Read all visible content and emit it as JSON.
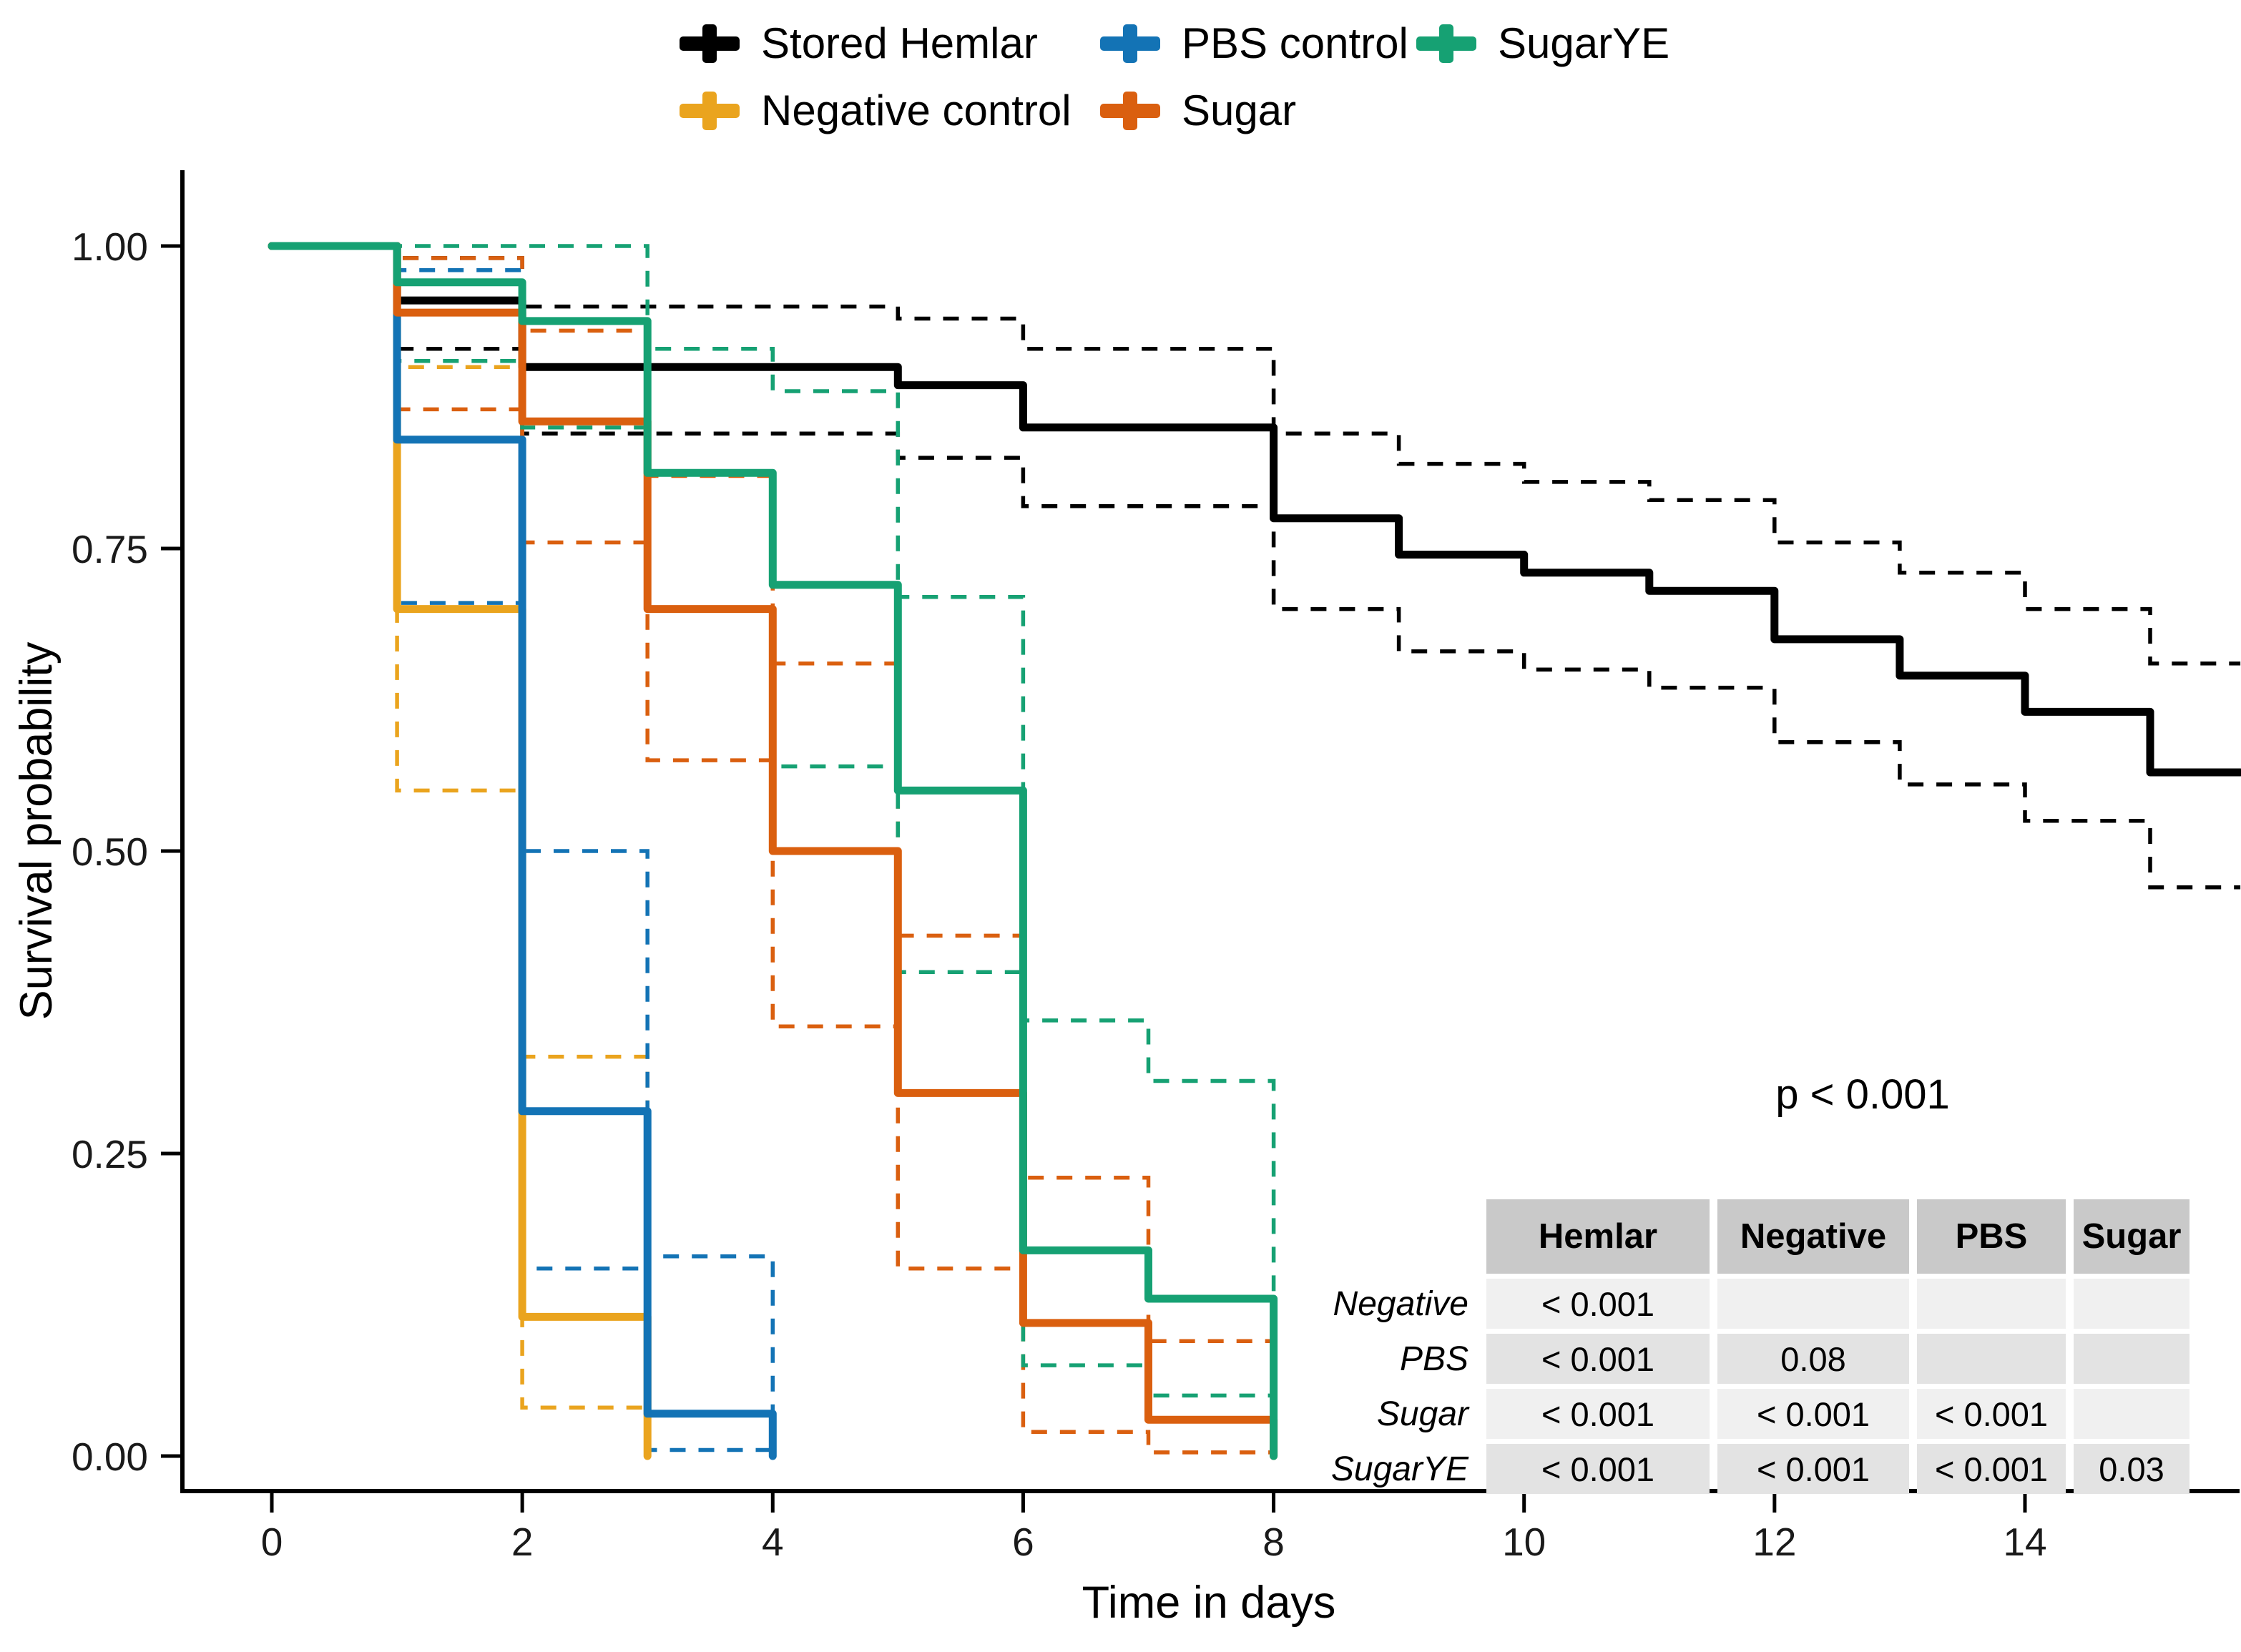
{
  "chart_data": {
    "type": "line",
    "subtype": "kaplan-meier-step",
    "title": "",
    "xlabel": "Time in days",
    "ylabel": "Survival probability",
    "xlim": [
      -0.72,
      15.72
    ],
    "ylim": [
      0,
      1
    ],
    "grid": false,
    "legend_position": "top",
    "xticks": [
      {
        "v": 0,
        "label": "0"
      },
      {
        "v": 2,
        "label": "2"
      },
      {
        "v": 4,
        "label": "4"
      },
      {
        "v": 6,
        "label": "6"
      },
      {
        "v": 8,
        "label": "8"
      },
      {
        "v": 10,
        "label": "10"
      },
      {
        "v": 12,
        "label": "12"
      },
      {
        "v": 14,
        "label": "14"
      }
    ],
    "yticks": [
      {
        "v": 1.0,
        "label": "1.00"
      },
      {
        "v": 0.75,
        "label": "0.75"
      },
      {
        "v": 0.5,
        "label": "0.50"
      },
      {
        "v": 0.25,
        "label": "0.25"
      },
      {
        "v": 0.0,
        "label": "0.00"
      }
    ],
    "series": [
      {
        "name": "Stored Hemlar",
        "color": "#000000",
        "end": 15.72,
        "steps": [
          [
            0,
            1
          ],
          [
            1,
            0.955
          ],
          [
            2,
            0.9
          ],
          [
            5,
            0.885
          ],
          [
            6,
            0.85
          ],
          [
            8,
            0.775
          ],
          [
            9,
            0.745
          ],
          [
            10,
            0.73
          ],
          [
            11,
            0.715
          ],
          [
            12,
            0.675
          ],
          [
            13,
            0.645
          ],
          [
            14,
            0.615
          ],
          [
            15,
            0.565
          ]
        ],
        "upper": [
          [
            0,
            1
          ],
          [
            1,
            0.99
          ],
          [
            2,
            0.95
          ],
          [
            5,
            0.94
          ],
          [
            6,
            0.915
          ],
          [
            8,
            0.845
          ],
          [
            9,
            0.82
          ],
          [
            10,
            0.805
          ],
          [
            11,
            0.79
          ],
          [
            12,
            0.755
          ],
          [
            13,
            0.73
          ],
          [
            14,
            0.7
          ],
          [
            15,
            0.655
          ]
        ],
        "lower": [
          [
            0,
            1
          ],
          [
            1,
            0.915
          ],
          [
            2,
            0.845
          ],
          [
            5,
            0.825
          ],
          [
            6,
            0.785
          ],
          [
            8,
            0.7
          ],
          [
            9,
            0.665
          ],
          [
            10,
            0.65
          ],
          [
            11,
            0.635
          ],
          [
            12,
            0.59
          ],
          [
            13,
            0.555
          ],
          [
            14,
            0.525
          ],
          [
            15,
            0.47
          ]
        ]
      },
      {
        "name": "Negative control",
        "color": "#EAA41E",
        "end": 3,
        "steps": [
          [
            0,
            1
          ],
          [
            1,
            0.7
          ],
          [
            2,
            0.115
          ],
          [
            3,
            0
          ]
        ],
        "upper": [
          [
            0,
            1
          ],
          [
            1,
            0.9
          ],
          [
            2,
            0.33
          ],
          [
            3,
            0
          ]
        ],
        "lower": [
          [
            0,
            1
          ],
          [
            1,
            0.55
          ],
          [
            2,
            0.04
          ],
          [
            3,
            0
          ]
        ]
      },
      {
        "name": "PBS control",
        "color": "#1373B5",
        "end": 4,
        "steps": [
          [
            0,
            1
          ],
          [
            1,
            0.84
          ],
          [
            2,
            0.285
          ],
          [
            3,
            0.035
          ],
          [
            4,
            0
          ]
        ],
        "upper": [
          [
            0,
            1
          ],
          [
            1,
            0.98
          ],
          [
            2,
            0.5
          ],
          [
            3,
            0.165
          ],
          [
            4,
            0
          ]
        ],
        "lower": [
          [
            0,
            1
          ],
          [
            1,
            0.705
          ],
          [
            2,
            0.155
          ],
          [
            3,
            0.005
          ],
          [
            4,
            0
          ]
        ]
      },
      {
        "name": "Sugar",
        "color": "#DA5F0F",
        "end": 8,
        "steps": [
          [
            0,
            1
          ],
          [
            1,
            0.945
          ],
          [
            2,
            0.855
          ],
          [
            3,
            0.7
          ],
          [
            4,
            0.5
          ],
          [
            5,
            0.3
          ],
          [
            6,
            0.11
          ],
          [
            7,
            0.03
          ],
          [
            8,
            0
          ]
        ],
        "upper": [
          [
            0,
            1
          ],
          [
            1,
            0.99
          ],
          [
            2,
            0.93
          ],
          [
            3,
            0.81
          ],
          [
            4,
            0.655
          ],
          [
            5,
            0.43
          ],
          [
            6,
            0.23
          ],
          [
            7,
            0.095
          ],
          [
            8,
            0
          ]
        ],
        "lower": [
          [
            0,
            1
          ],
          [
            1,
            0.865
          ],
          [
            2,
            0.755
          ],
          [
            3,
            0.575
          ],
          [
            4,
            0.355
          ],
          [
            5,
            0.155
          ],
          [
            6,
            0.02
          ],
          [
            7,
            0.003
          ],
          [
            8,
            0
          ]
        ]
      },
      {
        "name": "SugarYE",
        "color": "#16A173",
        "end": 8,
        "steps": [
          [
            0,
            1
          ],
          [
            1,
            0.97
          ],
          [
            2,
            0.938
          ],
          [
            3,
            0.8125
          ],
          [
            4,
            0.72
          ],
          [
            5,
            0.55
          ],
          [
            6,
            0.17
          ],
          [
            7,
            0.13
          ],
          [
            8,
            0
          ]
        ],
        "upper": [
          [
            0,
            1
          ],
          [
            1,
            1.0
          ],
          [
            2,
            1.0
          ],
          [
            3,
            0.915
          ],
          [
            4,
            0.88
          ],
          [
            5,
            0.71
          ],
          [
            6,
            0.36
          ],
          [
            7,
            0.31
          ],
          [
            8,
            0
          ]
        ],
        "lower": [
          [
            0,
            1
          ],
          [
            1,
            0.905
          ],
          [
            2,
            0.85
          ],
          [
            3,
            0.7
          ],
          [
            4,
            0.57
          ],
          [
            5,
            0.4
          ],
          [
            6,
            0.075
          ],
          [
            7,
            0.05
          ],
          [
            8,
            0
          ]
        ]
      }
    ]
  },
  "legend": {
    "items": [
      {
        "series": 0,
        "label": "Stored Hemlar"
      },
      {
        "series": 2,
        "label": "PBS control"
      },
      {
        "series": 4,
        "label": "SugarYE"
      },
      {
        "series": 1,
        "label": "Negative control"
      },
      {
        "series": 3,
        "label": "Sugar"
      }
    ]
  },
  "pvalue_table": {
    "overall_p": "p < 0.001",
    "col_headers": [
      "Hemlar",
      "Negative",
      "PBS",
      "Sugar"
    ],
    "rows": [
      {
        "label": "Negative",
        "cells": [
          "< 0.001",
          "",
          "",
          ""
        ]
      },
      {
        "label": "PBS",
        "cells": [
          "< 0.001",
          "0.08",
          "",
          ""
        ]
      },
      {
        "label": "Sugar",
        "cells": [
          "< 0.001",
          "< 0.001",
          "< 0.001",
          ""
        ]
      },
      {
        "label": "SugarYE",
        "cells": [
          "< 0.001",
          "< 0.001",
          "< 0.001",
          "0.03"
        ]
      }
    ]
  }
}
